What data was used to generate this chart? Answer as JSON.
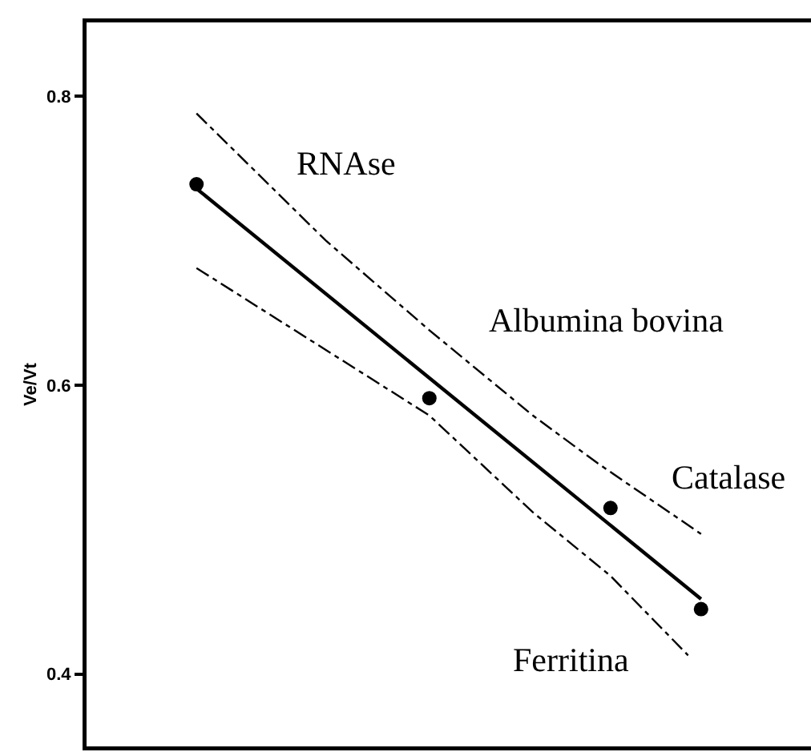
{
  "chart_data": {
    "type": "scatter",
    "ylabel": "Ve/Vt",
    "categories": [
      null,
      null,
      null,
      null,
      null,
      null,
      null,
      null,
      null,
      null,
      null,
      null,
      null,
      null,
      null,
      null,
      null,
      null,
      null,
      null,
      null,
      null,
      null,
      null,
      null,
      null,
      null,
      null,
      null,
      null,
      null,
      null,
      null,
      null,
      null,
      null,
      null,
      null,
      null,
      null,
      null,
      null,
      null,
      null,
      null,
      null,
      null,
      null,
      null,
      null,
      null,
      null,
      null,
      null,
      null,
      null
    ],
    "ylim": [
      0.35,
      0.851
    ],
    "yticks": [
      0.4,
      0.6,
      0.8
    ],
    "tick_labels": "y",
    "marker": "circle",
    "series": [
      {
        "type": "scatter",
        "color": "#000000",
        "values": [
          null,
          null,
          null,
          null,
          null,
          null,
          null,
          null,
          0.739,
          null,
          null,
          null,
          null,
          null,
          null,
          null,
          null,
          null,
          null,
          null,
          null,
          null,
          null,
          null,
          null,
          null,
          0.591,
          null,
          null,
          null,
          null,
          null,
          null,
          null,
          null,
          null,
          null,
          null,
          null,
          null,
          0.515,
          null,
          null,
          null,
          null,
          null,
          null,
          0.445,
          null,
          null,
          null,
          null,
          null,
          null,
          null,
          null
        ]
      },
      {
        "type": "line",
        "color": "#000000",
        "line_style": "solid",
        "marker": "none",
        "values": [
          null,
          null,
          null,
          null,
          null,
          null,
          null,
          null,
          0.736,
          null,
          null,
          null,
          null,
          null,
          null,
          null,
          null,
          null,
          null,
          null,
          null,
          null,
          null,
          null,
          null,
          null,
          null,
          null,
          null,
          null,
          null,
          null,
          null,
          null,
          null,
          null,
          null,
          null,
          null,
          null,
          null,
          null,
          null,
          null,
          null,
          null,
          null,
          0.452,
          null,
          null,
          null,
          null,
          null,
          null,
          null,
          null
        ]
      },
      {
        "type": "line",
        "color": "#000000",
        "line_style": "dashed",
        "marker": "none",
        "values": [
          null,
          null,
          null,
          null,
          null,
          null,
          null,
          null,
          0.788,
          null,
          null,
          null,
          null,
          null,
          null,
          null,
          null,
          null,
          0.7,
          null,
          null,
          null,
          null,
          null,
          null,
          null,
          0.638,
          null,
          null,
          null,
          null,
          null,
          null,
          null,
          0.579,
          null,
          null,
          null,
          null,
          0.546,
          null,
          null,
          null,
          null,
          null,
          null,
          null,
          0.497,
          null,
          null,
          null,
          null,
          null,
          null,
          null,
          null
        ]
      },
      {
        "type": "line",
        "color": "#000000",
        "line_style": "dashed",
        "marker": "none",
        "values": [
          null,
          null,
          null,
          null,
          null,
          null,
          null,
          null,
          0.681,
          null,
          null,
          null,
          null,
          null,
          null,
          null,
          null,
          null,
          null,
          null,
          null,
          null,
          null,
          null,
          null,
          null,
          0.579,
          null,
          null,
          null,
          null,
          null,
          null,
          null,
          0.512,
          null,
          null,
          null,
          null,
          null,
          0.468,
          null,
          null,
          null,
          null,
          null,
          0.413,
          null,
          null,
          null,
          null,
          null,
          null,
          null,
          null,
          null
        ]
      }
    ],
    "annotations": [
      "RNAse",
      "Albumina bovina",
      "Catalase",
      "Ferritina"
    ]
  }
}
